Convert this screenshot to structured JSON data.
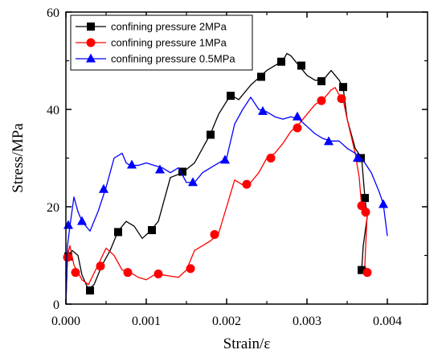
{
  "chart_data": {
    "type": "line",
    "xlabel": "Strain/ε",
    "ylabel": "Stress/MPa",
    "xlim": [
      0,
      0.0045
    ],
    "ylim": [
      0,
      60
    ],
    "x_ticks": [
      "0.000",
      "0.001",
      "0.002",
      "0.003",
      "0.004"
    ],
    "y_ticks": [
      "0",
      "20",
      "40",
      "60"
    ],
    "legend_position": "top-left",
    "series": [
      {
        "name": "confining pressure 2MPa",
        "color": "#000000",
        "marker": "square",
        "points": [
          [
            0,
            0
          ],
          [
            2e-05,
            10
          ],
          [
            8e-05,
            11
          ],
          [
            0.00015,
            10
          ],
          [
            0.0002,
            6
          ],
          [
            0.00028,
            3
          ],
          [
            0.00035,
            4
          ],
          [
            0.00045,
            8
          ],
          [
            0.00055,
            11
          ],
          [
            0.00065,
            15
          ],
          [
            0.00075,
            17
          ],
          [
            0.00085,
            16
          ],
          [
            0.00095,
            13.5
          ],
          [
            0.00105,
            15
          ],
          [
            0.00115,
            17
          ],
          [
            0.0013,
            26
          ],
          [
            0.00145,
            27
          ],
          [
            0.0016,
            29
          ],
          [
            0.0018,
            35
          ],
          [
            0.0019,
            39
          ],
          [
            0.00205,
            43
          ],
          [
            0.00215,
            42
          ],
          [
            0.0023,
            45
          ],
          [
            0.0024,
            46.5
          ],
          [
            0.0025,
            48
          ],
          [
            0.0026,
            49
          ],
          [
            0.0027,
            50
          ],
          [
            0.00275,
            51.5
          ],
          [
            0.0028,
            51
          ],
          [
            0.0029,
            49
          ],
          [
            0.003,
            47
          ],
          [
            0.0031,
            46
          ],
          [
            0.0032,
            46
          ],
          [
            0.0033,
            48
          ],
          [
            0.0034,
            46
          ],
          [
            0.00345,
            44.5
          ],
          [
            0.0035,
            38
          ],
          [
            0.0036,
            32
          ],
          [
            0.00368,
            30
          ],
          [
            0.00372,
            22
          ],
          [
            0.00375,
            18
          ],
          [
            0.0037,
            12
          ],
          [
            0.00368,
            7
          ]
        ],
        "marker_points": [
          [
            3e-05,
            9.8
          ],
          [
            0.0003,
            2.8
          ],
          [
            0.00065,
            14.8
          ],
          [
            0.00107,
            15.2
          ],
          [
            0.00145,
            27.2
          ],
          [
            0.0018,
            34.8
          ],
          [
            0.00205,
            42.8
          ],
          [
            0.00243,
            46.7
          ],
          [
            0.00268,
            49.8
          ],
          [
            0.00293,
            49.0
          ],
          [
            0.00318,
            45.8
          ],
          [
            0.00345,
            44.6
          ],
          [
            0.00367,
            30
          ],
          [
            0.00372,
            21.8
          ],
          [
            0.00368,
            7
          ]
        ]
      },
      {
        "name": "confining pressure 1MPa",
        "color": "#ff0000",
        "marker": "circle",
        "points": [
          [
            0,
            0
          ],
          [
            2e-05,
            10
          ],
          [
            5e-05,
            12
          ],
          [
            0.0001,
            8
          ],
          [
            0.00015,
            6.5
          ],
          [
            0.0002,
            5
          ],
          [
            0.00028,
            4
          ],
          [
            0.0004,
            8
          ],
          [
            0.0005,
            11.5
          ],
          [
            0.0006,
            10
          ],
          [
            0.0007,
            7
          ],
          [
            0.0008,
            6.5
          ],
          [
            0.0009,
            5.5
          ],
          [
            0.001,
            5
          ],
          [
            0.0011,
            6
          ],
          [
            0.0012,
            6
          ],
          [
            0.0014,
            5.5
          ],
          [
            0.0015,
            7
          ],
          [
            0.0016,
            11
          ],
          [
            0.0017,
            12
          ],
          [
            0.0018,
            13
          ],
          [
            0.0019,
            14.5
          ],
          [
            0.002,
            20
          ],
          [
            0.0021,
            25.5
          ],
          [
            0.0022,
            24.5
          ],
          [
            0.0023,
            25
          ],
          [
            0.0024,
            27
          ],
          [
            0.0025,
            30
          ],
          [
            0.0026,
            31
          ],
          [
            0.0027,
            33
          ],
          [
            0.0028,
            35.5
          ],
          [
            0.0029,
            37
          ],
          [
            0.003,
            39
          ],
          [
            0.0031,
            41
          ],
          [
            0.0032,
            42
          ],
          [
            0.0033,
            44
          ],
          [
            0.00335,
            44.5
          ],
          [
            0.0034,
            43
          ],
          [
            0.00345,
            42
          ],
          [
            0.0035,
            38
          ],
          [
            0.0036,
            31
          ],
          [
            0.00365,
            26
          ],
          [
            0.00368,
            20
          ],
          [
            0.00372,
            18
          ],
          [
            0.00375,
            19
          ],
          [
            0.00372,
            8
          ],
          [
            0.00375,
            6.5
          ]
        ],
        "marker_points": [
          [
            2e-05,
            9.6
          ],
          [
            0.00012,
            6.5
          ],
          [
            0.00043,
            7.8
          ],
          [
            0.00077,
            6.5
          ],
          [
            0.00115,
            6.2
          ],
          [
            0.00155,
            7.3
          ],
          [
            0.00185,
            14.3
          ],
          [
            0.00225,
            24.6
          ],
          [
            0.00255,
            30.0
          ],
          [
            0.00288,
            36.2
          ],
          [
            0.00318,
            41.8
          ],
          [
            0.00343,
            42.2
          ],
          [
            0.00368,
            20.2
          ],
          [
            0.00373,
            18.9
          ],
          [
            0.00375,
            6.5
          ]
        ]
      },
      {
        "name": "confining pressure 0.5MPa",
        "color": "#0000ff",
        "marker": "triangle",
        "points": [
          [
            0,
            0
          ],
          [
            2e-05,
            12
          ],
          [
            5e-05,
            16
          ],
          [
            0.0001,
            22
          ],
          [
            0.00015,
            19
          ],
          [
            0.0002,
            17
          ],
          [
            0.0003,
            15
          ],
          [
            0.0004,
            19
          ],
          [
            0.0005,
            24
          ],
          [
            0.0006,
            30
          ],
          [
            0.0007,
            31
          ],
          [
            0.00075,
            29
          ],
          [
            0.0008,
            28.5
          ],
          [
            0.0009,
            28.5
          ],
          [
            0.001,
            29
          ],
          [
            0.0011,
            28.5
          ],
          [
            0.0012,
            28
          ],
          [
            0.0013,
            27
          ],
          [
            0.0014,
            28
          ],
          [
            0.0015,
            25
          ],
          [
            0.0016,
            25
          ],
          [
            0.0017,
            27
          ],
          [
            0.0018,
            28
          ],
          [
            0.0019,
            29
          ],
          [
            0.002,
            30
          ],
          [
            0.0021,
            37
          ],
          [
            0.0022,
            40
          ],
          [
            0.0023,
            42.5
          ],
          [
            0.0024,
            40
          ],
          [
            0.0025,
            39.5
          ],
          [
            0.0026,
            38.5
          ],
          [
            0.0027,
            38
          ],
          [
            0.0028,
            38.5
          ],
          [
            0.0029,
            38
          ],
          [
            0.003,
            36.5
          ],
          [
            0.0031,
            35
          ],
          [
            0.0032,
            34
          ],
          [
            0.0033,
            33.5
          ],
          [
            0.0034,
            33.5
          ],
          [
            0.0035,
            32
          ],
          [
            0.0036,
            31
          ],
          [
            0.0037,
            29.5
          ],
          [
            0.0038,
            27
          ],
          [
            0.0039,
            23
          ],
          [
            0.00395,
            20.5
          ],
          [
            0.004,
            14
          ]
        ],
        "marker_points": [
          [
            3e-05,
            16.2
          ],
          [
            0.0002,
            17.0
          ],
          [
            0.00047,
            23.6
          ],
          [
            0.00082,
            28.6
          ],
          [
            0.00117,
            27.6
          ],
          [
            0.00158,
            25.0
          ],
          [
            0.00198,
            29.6
          ],
          [
            0.00245,
            39.6
          ],
          [
            0.00288,
            38.5
          ],
          [
            0.00327,
            33.4
          ],
          [
            0.00363,
            30.0
          ],
          [
            0.00395,
            20.5
          ]
        ]
      }
    ]
  }
}
